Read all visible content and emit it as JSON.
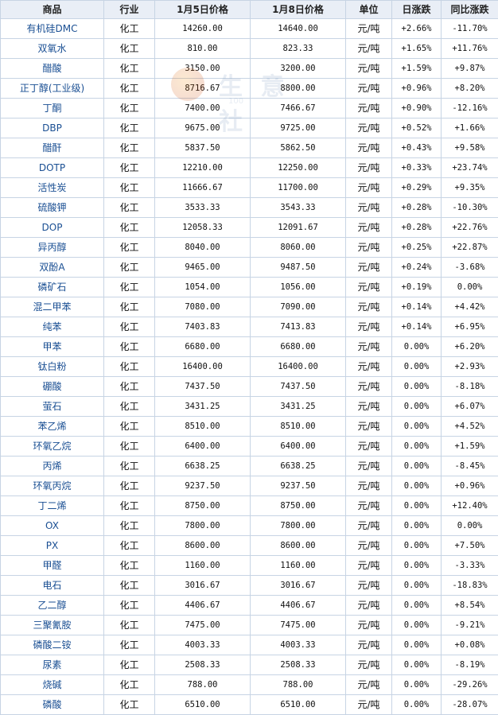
{
  "headers": [
    "商品",
    "行业",
    "1月5日价格",
    "1月8日价格",
    "单位",
    "日涨跌",
    "同比涨跌"
  ],
  "watermark": {
    "text": "生 意 社",
    "sub": "100"
  },
  "colors": {
    "up": "#e10000",
    "down": "#008a00",
    "header_bg": "#e9eef6",
    "border": "#c7d4e4",
    "name": "#1a4f93"
  },
  "rows": [
    {
      "name": "有机硅DMC",
      "industry": "化工",
      "p1": "14260.00",
      "p2": "14640.00",
      "unit": "元/吨",
      "day": "+2.66%",
      "yoy": "-11.70%",
      "dayDir": "up",
      "yoyDir": "down"
    },
    {
      "name": "双氧水",
      "industry": "化工",
      "p1": "810.00",
      "p2": "823.33",
      "unit": "元/吨",
      "day": "+1.65%",
      "yoy": "+11.76%",
      "dayDir": "up",
      "yoyDir": "up"
    },
    {
      "name": "醋酸",
      "industry": "化工",
      "p1": "3150.00",
      "p2": "3200.00",
      "unit": "元/吨",
      "day": "+1.59%",
      "yoy": "+9.87%",
      "dayDir": "up",
      "yoyDir": "up"
    },
    {
      "name": "正丁醇(工业级)",
      "industry": "化工",
      "p1": "8716.67",
      "p2": "8800.00",
      "unit": "元/吨",
      "day": "+0.96%",
      "yoy": "+8.20%",
      "dayDir": "up",
      "yoyDir": "up"
    },
    {
      "name": "丁酮",
      "industry": "化工",
      "p1": "7400.00",
      "p2": "7466.67",
      "unit": "元/吨",
      "day": "+0.90%",
      "yoy": "-12.16%",
      "dayDir": "up",
      "yoyDir": "down"
    },
    {
      "name": "DBP",
      "industry": "化工",
      "p1": "9675.00",
      "p2": "9725.00",
      "unit": "元/吨",
      "day": "+0.52%",
      "yoy": "+1.66%",
      "dayDir": "up",
      "yoyDir": "up"
    },
    {
      "name": "醋酐",
      "industry": "化工",
      "p1": "5837.50",
      "p2": "5862.50",
      "unit": "元/吨",
      "day": "+0.43%",
      "yoy": "+9.58%",
      "dayDir": "up",
      "yoyDir": "up"
    },
    {
      "name": "DOTP",
      "industry": "化工",
      "p1": "12210.00",
      "p2": "12250.00",
      "unit": "元/吨",
      "day": "+0.33%",
      "yoy": "+23.74%",
      "dayDir": "up",
      "yoyDir": "up"
    },
    {
      "name": "活性炭",
      "industry": "化工",
      "p1": "11666.67",
      "p2": "11700.00",
      "unit": "元/吨",
      "day": "+0.29%",
      "yoy": "+9.35%",
      "dayDir": "up",
      "yoyDir": "up"
    },
    {
      "name": "硫酸钾",
      "industry": "化工",
      "p1": "3533.33",
      "p2": "3543.33",
      "unit": "元/吨",
      "day": "+0.28%",
      "yoy": "-10.30%",
      "dayDir": "up",
      "yoyDir": "down"
    },
    {
      "name": "DOP",
      "industry": "化工",
      "p1": "12058.33",
      "p2": "12091.67",
      "unit": "元/吨",
      "day": "+0.28%",
      "yoy": "+22.76%",
      "dayDir": "up",
      "yoyDir": "up"
    },
    {
      "name": "异丙醇",
      "industry": "化工",
      "p1": "8040.00",
      "p2": "8060.00",
      "unit": "元/吨",
      "day": "+0.25%",
      "yoy": "+22.87%",
      "dayDir": "up",
      "yoyDir": "up"
    },
    {
      "name": "双酚A",
      "industry": "化工",
      "p1": "9465.00",
      "p2": "9487.50",
      "unit": "元/吨",
      "day": "+0.24%",
      "yoy": "-3.68%",
      "dayDir": "up",
      "yoyDir": "down"
    },
    {
      "name": "磷矿石",
      "industry": "化工",
      "p1": "1054.00",
      "p2": "1056.00",
      "unit": "元/吨",
      "day": "+0.19%",
      "yoy": "0.00%",
      "dayDir": "up",
      "yoyDir": "flat"
    },
    {
      "name": "混二甲苯",
      "industry": "化工",
      "p1": "7080.00",
      "p2": "7090.00",
      "unit": "元/吨",
      "day": "+0.14%",
      "yoy": "+4.42%",
      "dayDir": "up",
      "yoyDir": "up"
    },
    {
      "name": "纯苯",
      "industry": "化工",
      "p1": "7403.83",
      "p2": "7413.83",
      "unit": "元/吨",
      "day": "+0.14%",
      "yoy": "+6.95%",
      "dayDir": "up",
      "yoyDir": "up"
    },
    {
      "name": "甲苯",
      "industry": "化工",
      "p1": "6680.00",
      "p2": "6680.00",
      "unit": "元/吨",
      "day": "0.00%",
      "yoy": "+6.20%",
      "dayDir": "flat",
      "yoyDir": "up"
    },
    {
      "name": "钛白粉",
      "industry": "化工",
      "p1": "16400.00",
      "p2": "16400.00",
      "unit": "元/吨",
      "day": "0.00%",
      "yoy": "+2.93%",
      "dayDir": "flat",
      "yoyDir": "up"
    },
    {
      "name": "硼酸",
      "industry": "化工",
      "p1": "7437.50",
      "p2": "7437.50",
      "unit": "元/吨",
      "day": "0.00%",
      "yoy": "-8.18%",
      "dayDir": "flat",
      "yoyDir": "down"
    },
    {
      "name": "萤石",
      "industry": "化工",
      "p1": "3431.25",
      "p2": "3431.25",
      "unit": "元/吨",
      "day": "0.00%",
      "yoy": "+6.07%",
      "dayDir": "flat",
      "yoyDir": "up"
    },
    {
      "name": "苯乙烯",
      "industry": "化工",
      "p1": "8510.00",
      "p2": "8510.00",
      "unit": "元/吨",
      "day": "0.00%",
      "yoy": "+4.52%",
      "dayDir": "flat",
      "yoyDir": "up"
    },
    {
      "name": "环氧乙烷",
      "industry": "化工",
      "p1": "6400.00",
      "p2": "6400.00",
      "unit": "元/吨",
      "day": "0.00%",
      "yoy": "+1.59%",
      "dayDir": "flat",
      "yoyDir": "up"
    },
    {
      "name": "丙烯",
      "industry": "化工",
      "p1": "6638.25",
      "p2": "6638.25",
      "unit": "元/吨",
      "day": "0.00%",
      "yoy": "-8.45%",
      "dayDir": "flat",
      "yoyDir": "down"
    },
    {
      "name": "环氧丙烷",
      "industry": "化工",
      "p1": "9237.50",
      "p2": "9237.50",
      "unit": "元/吨",
      "day": "0.00%",
      "yoy": "+0.96%",
      "dayDir": "flat",
      "yoyDir": "up"
    },
    {
      "name": "丁二烯",
      "industry": "化工",
      "p1": "8750.00",
      "p2": "8750.00",
      "unit": "元/吨",
      "day": "0.00%",
      "yoy": "+12.40%",
      "dayDir": "flat",
      "yoyDir": "up"
    },
    {
      "name": "OX",
      "industry": "化工",
      "p1": "7800.00",
      "p2": "7800.00",
      "unit": "元/吨",
      "day": "0.00%",
      "yoy": "0.00%",
      "dayDir": "flat",
      "yoyDir": "flat"
    },
    {
      "name": "PX",
      "industry": "化工",
      "p1": "8600.00",
      "p2": "8600.00",
      "unit": "元/吨",
      "day": "0.00%",
      "yoy": "+7.50%",
      "dayDir": "flat",
      "yoyDir": "up"
    },
    {
      "name": "甲醛",
      "industry": "化工",
      "p1": "1160.00",
      "p2": "1160.00",
      "unit": "元/吨",
      "day": "0.00%",
      "yoy": "-3.33%",
      "dayDir": "flat",
      "yoyDir": "down"
    },
    {
      "name": "电石",
      "industry": "化工",
      "p1": "3016.67",
      "p2": "3016.67",
      "unit": "元/吨",
      "day": "0.00%",
      "yoy": "-18.83%",
      "dayDir": "flat",
      "yoyDir": "down"
    },
    {
      "name": "乙二醇",
      "industry": "化工",
      "p1": "4406.67",
      "p2": "4406.67",
      "unit": "元/吨",
      "day": "0.00%",
      "yoy": "+8.54%",
      "dayDir": "flat",
      "yoyDir": "up"
    },
    {
      "name": "三聚氰胺",
      "industry": "化工",
      "p1": "7475.00",
      "p2": "7475.00",
      "unit": "元/吨",
      "day": "0.00%",
      "yoy": "-9.21%",
      "dayDir": "flat",
      "yoyDir": "down"
    },
    {
      "name": "磷酸二铵",
      "industry": "化工",
      "p1": "4003.33",
      "p2": "4003.33",
      "unit": "元/吨",
      "day": "0.00%",
      "yoy": "+0.08%",
      "dayDir": "flat",
      "yoyDir": "up"
    },
    {
      "name": "尿素",
      "industry": "化工",
      "p1": "2508.33",
      "p2": "2508.33",
      "unit": "元/吨",
      "day": "0.00%",
      "yoy": "-8.19%",
      "dayDir": "flat",
      "yoyDir": "down"
    },
    {
      "name": "烧碱",
      "industry": "化工",
      "p1": "788.00",
      "p2": "788.00",
      "unit": "元/吨",
      "day": "0.00%",
      "yoy": "-29.26%",
      "dayDir": "flat",
      "yoyDir": "down"
    },
    {
      "name": "磷酸",
      "industry": "化工",
      "p1": "6510.00",
      "p2": "6510.00",
      "unit": "元/吨",
      "day": "0.00%",
      "yoy": "-28.07%",
      "dayDir": "flat",
      "yoyDir": "down"
    }
  ]
}
